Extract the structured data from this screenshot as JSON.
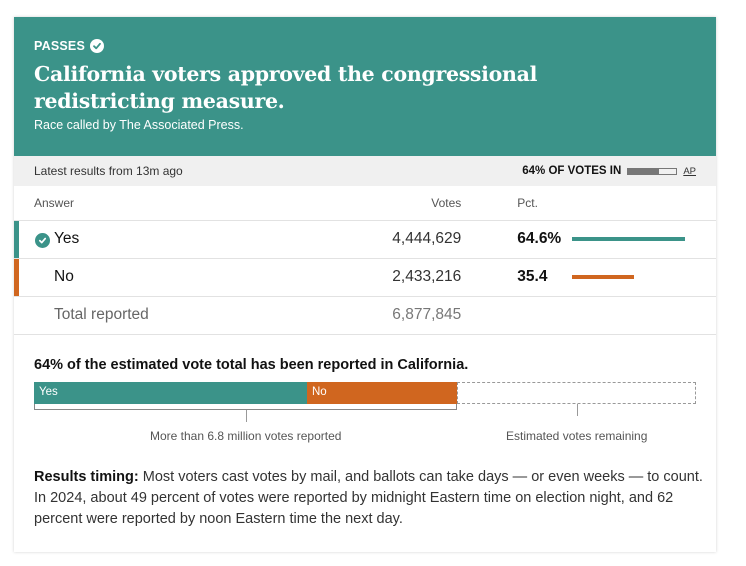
{
  "header": {
    "status": "PASSES",
    "headline": "California voters approved the congressional redistricting measure.",
    "called_by": "Race called by The Associated Press.",
    "bg_color": "#3b9389"
  },
  "latest": {
    "updated": "Latest results from 13m ago",
    "votes_in": "64% OF VOTES IN",
    "votes_in_fraction": 0.64,
    "source": "AP"
  },
  "table": {
    "headers": {
      "answer": "Answer",
      "votes": "Votes",
      "pct": "Pct."
    },
    "rows": [
      {
        "answer": "Yes",
        "votes": "4,444,629",
        "pct": "64.6%",
        "pct_value": 64.6,
        "color": "#3b9389",
        "winner": true
      },
      {
        "answer": "No",
        "votes": "2,433,216",
        "pct": "35.4",
        "pct_value": 35.4,
        "color": "#d0661f",
        "winner": false
      }
    ],
    "total": {
      "label": "Total reported",
      "votes": "6,877,845"
    }
  },
  "reported": {
    "title": "64% of the estimated vote total has been reported in California.",
    "yes_label": "Yes",
    "no_label": "No",
    "yes_share_of_estimate": 0.413,
    "no_share_of_estimate": 0.227,
    "reported_caption": "More than 6.8 million votes reported",
    "remaining_caption": "Estimated votes remaining"
  },
  "timing": {
    "label": "Results timing:",
    "text": "Most voters cast votes by mail, and ballots can take days — or even weeks — to count. In 2024, about 49 percent of votes were reported by midnight Eastern time on election night, and 62 percent were reported by noon Eastern time the next day."
  }
}
